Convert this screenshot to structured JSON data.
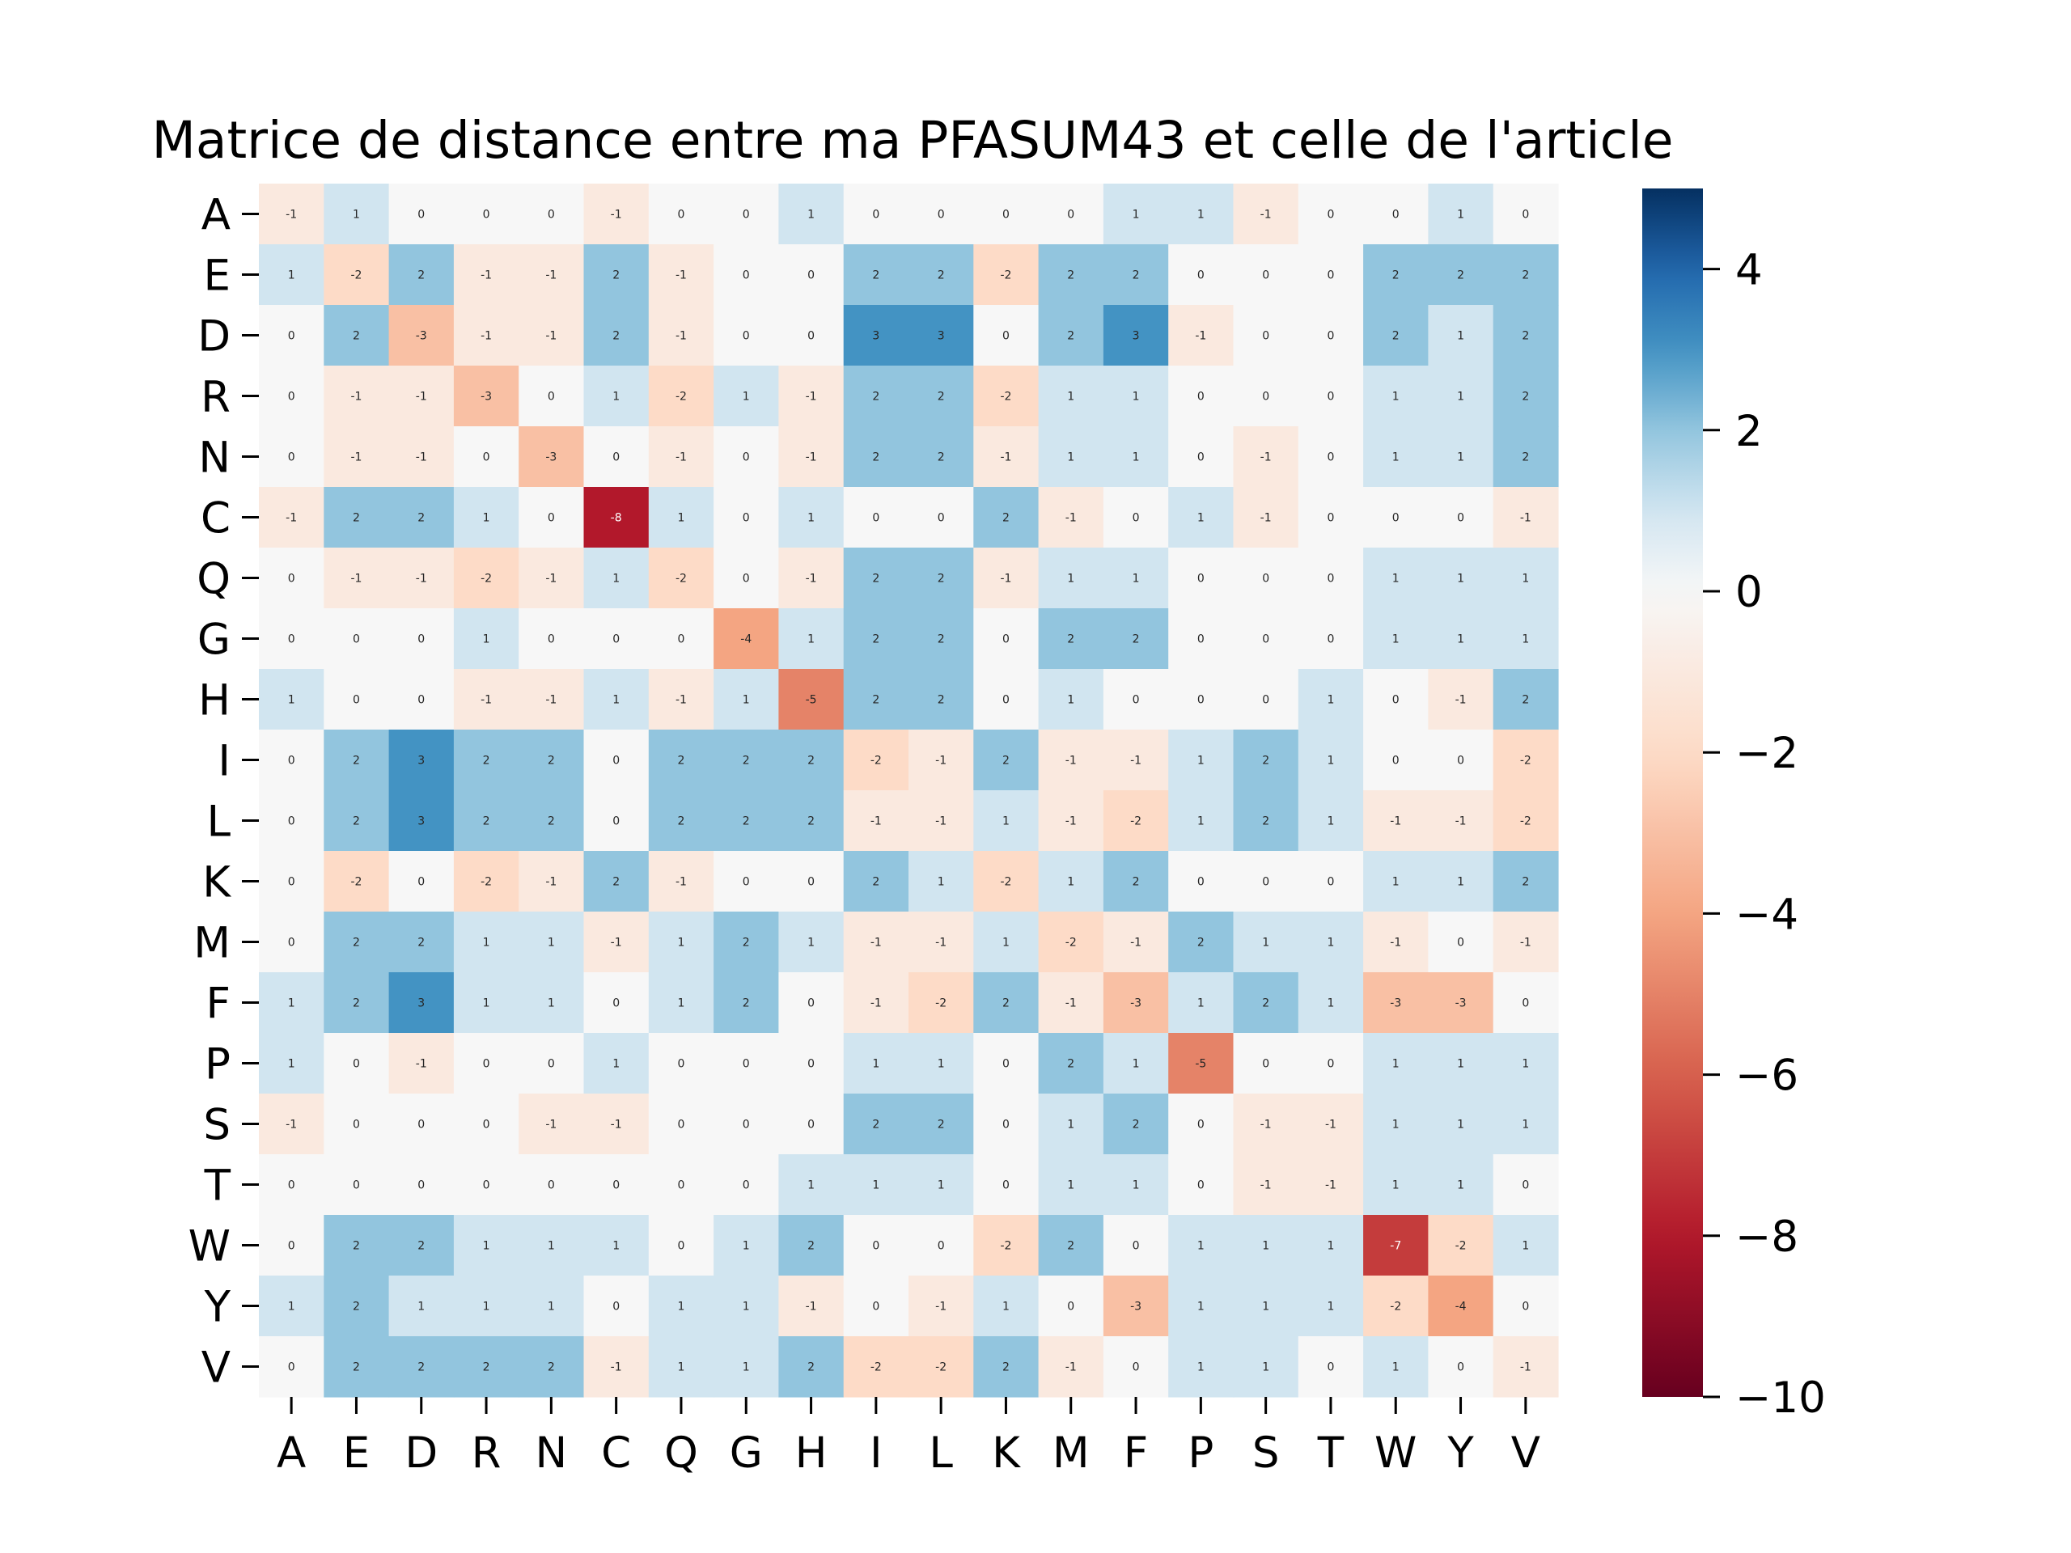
{
  "chart_data": {
    "type": "heatmap",
    "title": "Matrice de distance entre ma PFASUM43 et celle de l'article",
    "xlabel": "",
    "ylabel": "",
    "rows": [
      "A",
      "E",
      "D",
      "R",
      "N",
      "C",
      "Q",
      "G",
      "H",
      "I",
      "L",
      "K",
      "M",
      "F",
      "P",
      "S",
      "T",
      "W",
      "Y",
      "V"
    ],
    "cols": [
      "A",
      "E",
      "D",
      "R",
      "N",
      "C",
      "Q",
      "G",
      "H",
      "I",
      "L",
      "K",
      "M",
      "F",
      "P",
      "S",
      "T",
      "W",
      "Y",
      "V"
    ],
    "values": [
      [
        -1,
        1,
        0,
        0,
        0,
        -1,
        0,
        0,
        1,
        0,
        0,
        0,
        0,
        1,
        1,
        -1,
        0,
        0,
        1,
        0
      ],
      [
        1,
        -2,
        2,
        -1,
        -1,
        2,
        -1,
        0,
        0,
        2,
        2,
        -2,
        2,
        2,
        0,
        0,
        0,
        2,
        2,
        2
      ],
      [
        0,
        2,
        -3,
        -1,
        -1,
        2,
        -1,
        0,
        0,
        3,
        3,
        0,
        2,
        3,
        -1,
        0,
        0,
        2,
        1,
        2
      ],
      [
        0,
        -1,
        -1,
        -3,
        0,
        1,
        -2,
        1,
        -1,
        2,
        2,
        -2,
        1,
        1,
        0,
        0,
        0,
        1,
        1,
        2
      ],
      [
        0,
        -1,
        -1,
        0,
        -3,
        0,
        -1,
        0,
        -1,
        2,
        2,
        -1,
        1,
        1,
        0,
        -1,
        0,
        1,
        1,
        2
      ],
      [
        -1,
        2,
        2,
        1,
        0,
        -8,
        1,
        0,
        1,
        0,
        0,
        2,
        -1,
        0,
        1,
        -1,
        0,
        0,
        0,
        -1
      ],
      [
        0,
        -1,
        -1,
        -2,
        -1,
        1,
        -2,
        0,
        -1,
        2,
        2,
        -1,
        1,
        1,
        0,
        0,
        0,
        1,
        1,
        1
      ],
      [
        0,
        0,
        0,
        1,
        0,
        0,
        0,
        -4,
        1,
        2,
        2,
        0,
        2,
        2,
        0,
        0,
        0,
        1,
        1,
        1
      ],
      [
        1,
        0,
        0,
        -1,
        -1,
        1,
        -1,
        1,
        -5,
        2,
        2,
        0,
        1,
        0,
        0,
        0,
        1,
        0,
        -1,
        2
      ],
      [
        0,
        2,
        3,
        2,
        2,
        0,
        2,
        2,
        2,
        -2,
        -1,
        2,
        -1,
        -1,
        1,
        2,
        1,
        0,
        0,
        -2
      ],
      [
        0,
        2,
        3,
        2,
        2,
        0,
        2,
        2,
        2,
        -1,
        -1,
        1,
        -1,
        -2,
        1,
        2,
        1,
        -1,
        -1,
        -2
      ],
      [
        0,
        -2,
        0,
        -2,
        -1,
        2,
        -1,
        0,
        0,
        2,
        1,
        -2,
        1,
        2,
        0,
        0,
        0,
        1,
        1,
        2
      ],
      [
        0,
        2,
        2,
        1,
        1,
        -1,
        1,
        2,
        1,
        -1,
        -1,
        1,
        -2,
        -1,
        2,
        1,
        1,
        -1,
        0,
        -1
      ],
      [
        1,
        2,
        3,
        1,
        1,
        0,
        1,
        2,
        0,
        -1,
        -2,
        2,
        -1,
        -3,
        1,
        2,
        1,
        -3,
        -3,
        0
      ],
      [
        1,
        0,
        -1,
        0,
        0,
        1,
        0,
        0,
        0,
        1,
        1,
        0,
        2,
        1,
        -5,
        0,
        0,
        1,
        1,
        1
      ],
      [
        -1,
        0,
        0,
        0,
        -1,
        -1,
        0,
        0,
        0,
        2,
        2,
        0,
        1,
        2,
        0,
        -1,
        -1,
        1,
        1,
        1
      ],
      [
        0,
        0,
        0,
        0,
        0,
        0,
        0,
        0,
        1,
        1,
        1,
        0,
        1,
        1,
        0,
        -1,
        -1,
        1,
        1,
        0
      ],
      [
        0,
        2,
        2,
        1,
        1,
        1,
        0,
        1,
        2,
        0,
        0,
        -2,
        2,
        0,
        1,
        1,
        1,
        -7,
        -2,
        1
      ],
      [
        1,
        2,
        1,
        1,
        1,
        0,
        1,
        1,
        -1,
        0,
        -1,
        1,
        0,
        -3,
        1,
        1,
        1,
        -2,
        -4,
        0
      ],
      [
        0,
        2,
        2,
        2,
        2,
        -1,
        1,
        1,
        2,
        -2,
        -2,
        2,
        -1,
        0,
        1,
        1,
        0,
        1,
        0,
        -1
      ]
    ],
    "colormap": "RdBu",
    "vmin": -10,
    "vmax": 5,
    "colorbar_ticks": [
      4,
      2,
      0,
      -2,
      -4,
      -6,
      -8,
      -10
    ],
    "colorbar_tick_labels": [
      "4",
      "2",
      "0",
      "−2",
      "−4",
      "−6",
      "−8",
      "−10"
    ]
  }
}
